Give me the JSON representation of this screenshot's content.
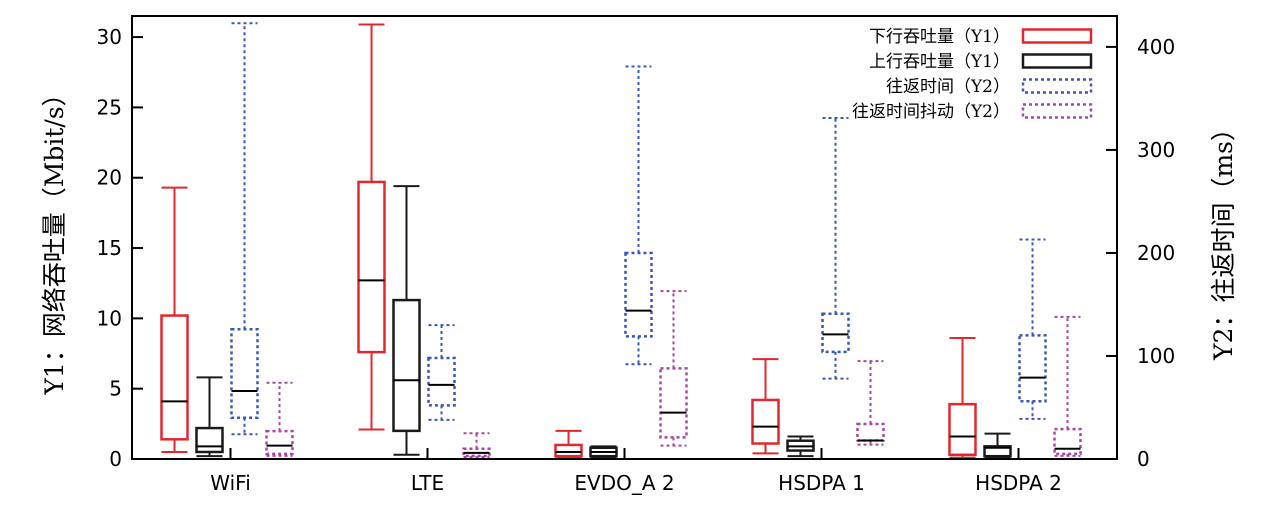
{
  "chart_data": {
    "type": "boxplot",
    "categories": [
      "WiFi",
      "LTE",
      "EVDO_A 2",
      "HSDPA 1",
      "HSDPA 2"
    ],
    "y1": {
      "label": "Y1：网络吞吐量（Mbit/s）",
      "range": [
        0,
        31.5
      ],
      "ticks": [
        0,
        5,
        10,
        15,
        20,
        25,
        30
      ]
    },
    "y2": {
      "label": "Y2：往返时间（ms）",
      "range": [
        0,
        430
      ],
      "ticks": [
        0,
        100,
        200,
        300,
        400
      ]
    },
    "grid": false,
    "legend_position": "top-right",
    "series": [
      {
        "name": "下行吞吐量（Y1）",
        "axis": "y1",
        "color": "#e0282e",
        "style": "solid",
        "boxes": [
          {
            "min": 0.5,
            "q1": 1.4,
            "median": 4.1,
            "q3": 10.2,
            "max": 19.3
          },
          {
            "min": 2.1,
            "q1": 7.6,
            "median": 12.7,
            "q3": 19.7,
            "max": 30.9
          },
          {
            "min": 0.1,
            "q1": 0.2,
            "median": 0.5,
            "q3": 1.0,
            "max": 2.0
          },
          {
            "min": 0.4,
            "q1": 1.1,
            "median": 2.3,
            "q3": 4.2,
            "max": 7.1
          },
          {
            "min": 0.1,
            "q1": 0.3,
            "median": 1.6,
            "q3": 3.9,
            "max": 8.6
          }
        ]
      },
      {
        "name": "上行吞吐量（Y1）",
        "axis": "y1",
        "color": "#1a1a1a",
        "style": "solid",
        "boxes": [
          {
            "min": 0.2,
            "q1": 0.5,
            "median": 0.9,
            "q3": 2.2,
            "max": 5.8
          },
          {
            "min": 0.3,
            "q1": 2.0,
            "median": 5.6,
            "q3": 11.3,
            "max": 19.4
          },
          {
            "min": 0.1,
            "q1": 0.2,
            "median": 0.5,
            "q3": 0.8,
            "max": 0.9
          },
          {
            "min": 0.2,
            "q1": 0.6,
            "median": 0.9,
            "q3": 1.3,
            "max": 1.6
          },
          {
            "min": 0.1,
            "q1": 0.2,
            "median": 0.8,
            "q3": 0.9,
            "max": 1.8
          }
        ]
      },
      {
        "name": "往返时间（Y2）",
        "axis": "y2",
        "color": "#3a57b4",
        "style": "dotted",
        "boxes": [
          {
            "min": 24,
            "q1": 40,
            "median": 66,
            "q3": 126,
            "max": 423
          },
          {
            "min": 38,
            "q1": 52,
            "median": 72,
            "q3": 98,
            "max": 130
          },
          {
            "min": 92,
            "q1": 119,
            "median": 144,
            "q3": 200,
            "max": 381
          },
          {
            "min": 78,
            "q1": 104,
            "median": 121,
            "q3": 141,
            "max": 331
          },
          {
            "min": 39,
            "q1": 56,
            "median": 79,
            "q3": 120,
            "max": 213
          }
        ]
      },
      {
        "name": "往返时间抖动（Y2）",
        "axis": "y2",
        "color": "#a846a0",
        "style": "dotted",
        "boxes": [
          {
            "min": 3,
            "q1": 5,
            "median": 13,
            "q3": 27,
            "max": 74
          },
          {
            "min": 2,
            "q1": 3,
            "median": 6,
            "q3": 10,
            "max": 25
          },
          {
            "min": 13,
            "q1": 21,
            "median": 45,
            "q3": 88,
            "max": 163
          },
          {
            "min": 14,
            "q1": 18,
            "median": 18,
            "q3": 34,
            "max": 95
          },
          {
            "min": 3,
            "q1": 5,
            "median": 10,
            "q3": 29,
            "max": 138
          }
        ]
      }
    ]
  }
}
